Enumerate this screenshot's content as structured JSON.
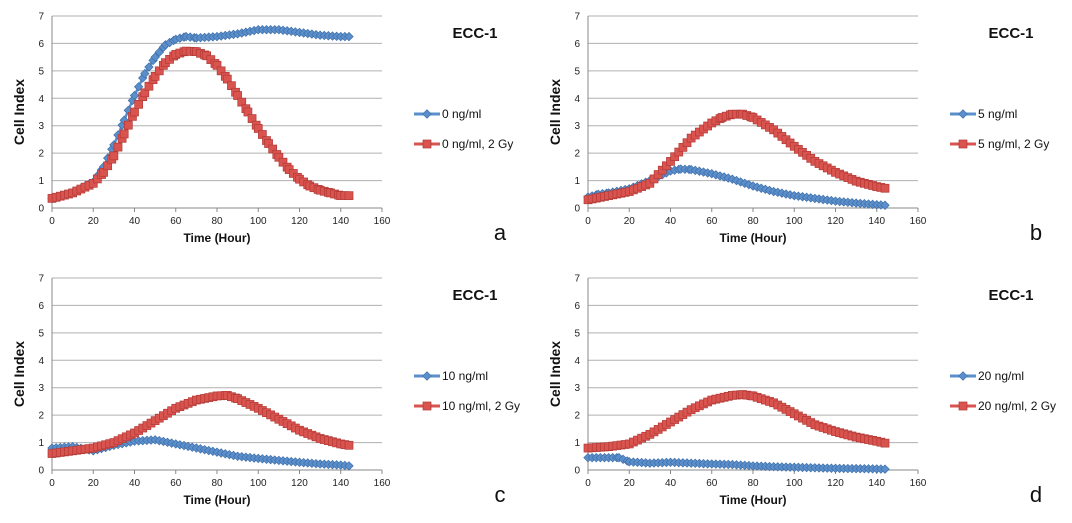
{
  "colors": {
    "blue": "#5b8fcc",
    "red": "#d9534f",
    "grid": "#b0b0b0",
    "axis": "#888888"
  },
  "chart_data": [
    {
      "type": "line",
      "title": "ECC-1",
      "panel_label": "a",
      "xlabel": "Time (Hour)",
      "ylabel": "Cell Index",
      "xlim": [
        0,
        160
      ],
      "ylim": [
        0,
        7
      ],
      "xticks": [
        0,
        20,
        40,
        60,
        80,
        100,
        120,
        140,
        160
      ],
      "yticks": [
        0,
        1,
        2,
        3,
        4,
        5,
        6,
        7
      ],
      "grid": true,
      "legend_position": "right",
      "series": [
        {
          "name": "0 ng/ml",
          "color": "blue",
          "marker": "diamond",
          "x": [
            0,
            10,
            20,
            25,
            30,
            35,
            40,
            45,
            50,
            55,
            60,
            65,
            70,
            80,
            90,
            100,
            110,
            120,
            130,
            140,
            144
          ],
          "y": [
            0.35,
            0.55,
            0.95,
            1.5,
            2.3,
            3.2,
            4.1,
            4.9,
            5.5,
            5.95,
            6.15,
            6.25,
            6.2,
            6.25,
            6.35,
            6.5,
            6.5,
            6.4,
            6.3,
            6.25,
            6.25
          ]
        },
        {
          "name": "0 ng/ml, 2 Gy",
          "color": "red",
          "marker": "square",
          "x": [
            0,
            10,
            20,
            25,
            30,
            35,
            40,
            45,
            50,
            55,
            60,
            65,
            70,
            75,
            80,
            85,
            90,
            95,
            100,
            105,
            110,
            115,
            120,
            125,
            130,
            135,
            140,
            144
          ],
          "y": [
            0.35,
            0.55,
            0.9,
            1.3,
            1.9,
            2.7,
            3.5,
            4.2,
            4.8,
            5.3,
            5.6,
            5.72,
            5.7,
            5.55,
            5.2,
            4.7,
            4.1,
            3.5,
            2.9,
            2.35,
            1.85,
            1.4,
            1.05,
            0.8,
            0.65,
            0.55,
            0.45,
            0.45
          ]
        }
      ]
    },
    {
      "type": "line",
      "title": "ECC-1",
      "panel_label": "b",
      "xlabel": "Time (Hour)",
      "ylabel": "Cell Index",
      "xlim": [
        0,
        160
      ],
      "ylim": [
        0,
        7
      ],
      "xticks": [
        0,
        20,
        40,
        60,
        80,
        100,
        120,
        140,
        160
      ],
      "yticks": [
        0,
        1,
        2,
        3,
        4,
        5,
        6,
        7
      ],
      "grid": true,
      "legend_position": "right",
      "series": [
        {
          "name": "5 ng/ml",
          "color": "blue",
          "marker": "diamond",
          "x": [
            0,
            5,
            10,
            20,
            30,
            40,
            45,
            50,
            60,
            70,
            80,
            90,
            100,
            110,
            120,
            130,
            140,
            144
          ],
          "y": [
            0.4,
            0.5,
            0.55,
            0.7,
            1.0,
            1.35,
            1.42,
            1.4,
            1.25,
            1.05,
            0.8,
            0.6,
            0.45,
            0.35,
            0.25,
            0.18,
            0.12,
            0.1
          ]
        },
        {
          "name": "5 ng/ml, 2 Gy",
          "color": "red",
          "marker": "square",
          "x": [
            0,
            10,
            20,
            30,
            40,
            50,
            60,
            65,
            70,
            75,
            80,
            90,
            100,
            110,
            120,
            130,
            140,
            144
          ],
          "y": [
            0.3,
            0.45,
            0.6,
            0.9,
            1.7,
            2.55,
            3.1,
            3.3,
            3.42,
            3.42,
            3.3,
            2.85,
            2.25,
            1.7,
            1.3,
            0.98,
            0.78,
            0.72
          ]
        }
      ]
    },
    {
      "type": "line",
      "title": "ECC-1",
      "panel_label": "c",
      "xlabel": "Time (Hour)",
      "ylabel": "Cell Index",
      "xlim": [
        0,
        160
      ],
      "ylim": [
        0,
        7
      ],
      "xticks": [
        0,
        20,
        40,
        60,
        80,
        100,
        120,
        140,
        160
      ],
      "yticks": [
        0,
        1,
        2,
        3,
        4,
        5,
        6,
        7
      ],
      "grid": true,
      "legend_position": "right",
      "series": [
        {
          "name": "10 ng/ml",
          "color": "blue",
          "marker": "diamond",
          "x": [
            0,
            10,
            20,
            30,
            40,
            50,
            60,
            70,
            80,
            90,
            100,
            110,
            120,
            130,
            140,
            144
          ],
          "y": [
            0.8,
            0.85,
            0.7,
            0.9,
            1.05,
            1.1,
            0.95,
            0.8,
            0.65,
            0.5,
            0.42,
            0.35,
            0.28,
            0.22,
            0.18,
            0.15
          ]
        },
        {
          "name": "10 ng/ml, 2 Gy",
          "color": "red",
          "marker": "square",
          "x": [
            0,
            10,
            20,
            30,
            40,
            50,
            60,
            70,
            80,
            85,
            90,
            100,
            110,
            120,
            130,
            140,
            144
          ],
          "y": [
            0.6,
            0.7,
            0.8,
            1.0,
            1.35,
            1.8,
            2.25,
            2.55,
            2.7,
            2.72,
            2.6,
            2.25,
            1.85,
            1.45,
            1.15,
            0.95,
            0.9
          ]
        }
      ]
    },
    {
      "type": "line",
      "title": "ECC-1",
      "panel_label": "d",
      "xlabel": "Time (Hour)",
      "ylabel": "Cell Index",
      "xlim": [
        0,
        160
      ],
      "ylim": [
        0,
        7
      ],
      "xticks": [
        0,
        20,
        40,
        60,
        80,
        100,
        120,
        140,
        160
      ],
      "yticks": [
        0,
        1,
        2,
        3,
        4,
        5,
        6,
        7
      ],
      "grid": true,
      "legend_position": "right",
      "series": [
        {
          "name": "20 ng/ml",
          "color": "blue",
          "marker": "diamond",
          "x": [
            0,
            10,
            15,
            20,
            30,
            40,
            50,
            60,
            70,
            80,
            90,
            100,
            110,
            120,
            130,
            140,
            144
          ],
          "y": [
            0.45,
            0.45,
            0.45,
            0.3,
            0.25,
            0.28,
            0.25,
            0.22,
            0.2,
            0.15,
            0.12,
            0.1,
            0.08,
            0.06,
            0.05,
            0.04,
            0.03
          ]
        },
        {
          "name": "20 ng/ml, 2 Gy",
          "color": "red",
          "marker": "square",
          "x": [
            0,
            10,
            20,
            30,
            40,
            50,
            60,
            70,
            75,
            80,
            90,
            100,
            110,
            120,
            130,
            140,
            144
          ],
          "y": [
            0.8,
            0.85,
            0.95,
            1.3,
            1.75,
            2.2,
            2.55,
            2.72,
            2.75,
            2.7,
            2.45,
            2.05,
            1.65,
            1.4,
            1.2,
            1.05,
            0.98
          ]
        }
      ]
    }
  ]
}
